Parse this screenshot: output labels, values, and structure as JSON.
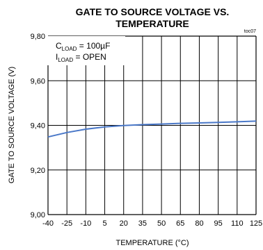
{
  "chart_data": {
    "type": "line",
    "title_lines": [
      "GATE TO SOURCE VOLTAGE VS.",
      "TEMPERATURE"
    ],
    "chart_code": "toc07",
    "xlabel": "TEMPERATURE (°C)",
    "ylabel": "GATE TO SOURCE VOLTAGE (V)",
    "xlim": [
      -40,
      125
    ],
    "ylim": [
      9.0,
      9.8
    ],
    "x_ticks": [
      "-40",
      "-25",
      "-10",
      "5",
      "20",
      "35",
      "50",
      "65",
      "80",
      "95",
      "110",
      "125"
    ],
    "y_ticks": [
      "9,80",
      "9,60",
      "9,40",
      "9,20",
      "9,00"
    ],
    "grid": true,
    "annotation": {
      "line1": {
        "prefix": "C",
        "sub": "LOAD",
        "suffix": " = 100µF"
      },
      "line2": {
        "prefix": "I",
        "sub": "LOAD",
        "suffix": " = OPEN"
      }
    },
    "series": [
      {
        "color": "#4a78c8",
        "x": [
          -40,
          -25,
          -10,
          5,
          20,
          35,
          50,
          65,
          80,
          95,
          110,
          125
        ],
        "y": [
          9.348,
          9.368,
          9.383,
          9.393,
          9.399,
          9.403,
          9.406,
          9.409,
          9.411,
          9.413,
          9.416,
          9.419
        ]
      }
    ]
  }
}
